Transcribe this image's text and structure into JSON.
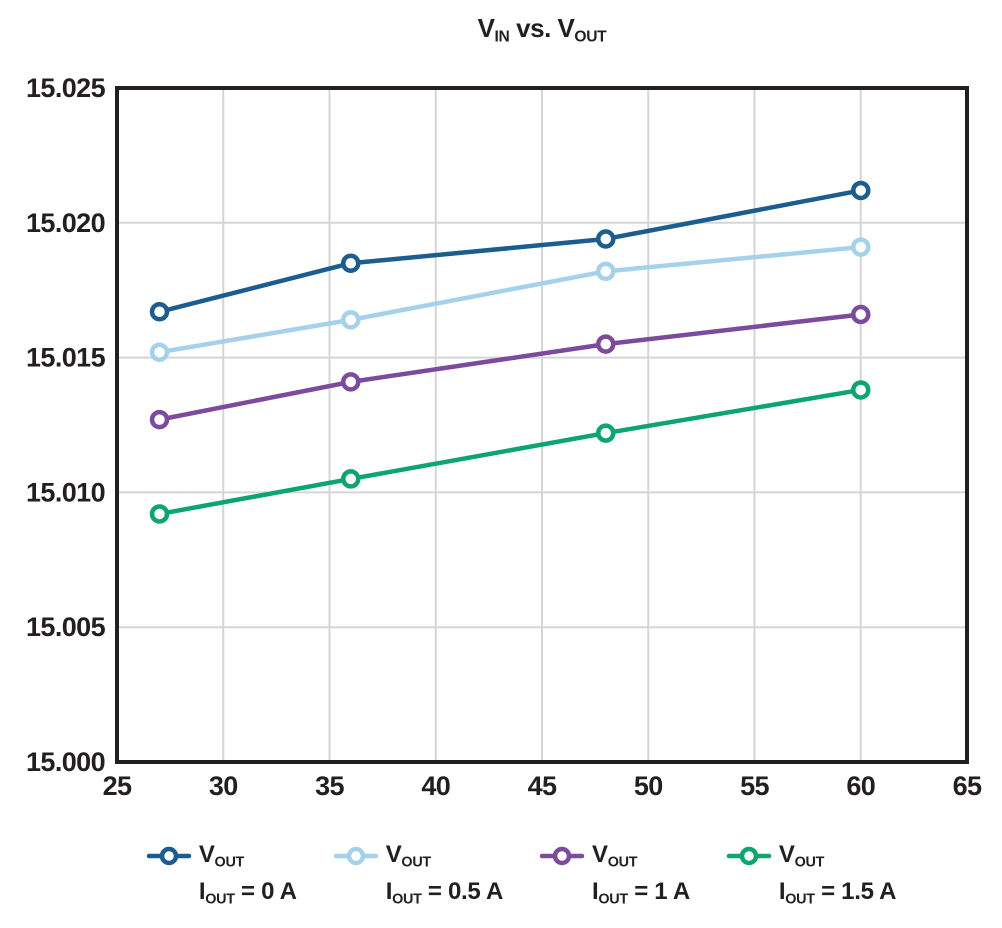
{
  "title": {
    "segments": [
      {
        "t": "V"
      },
      {
        "s": "IN"
      },
      {
        "t": " vs. V"
      },
      {
        "s": "OUT"
      }
    ]
  },
  "chart_data": {
    "type": "line",
    "title": "VIN vs. VOUT",
    "xlabel": "",
    "ylabel": "",
    "x": [
      27,
      36,
      48,
      60
    ],
    "xlim": [
      25,
      65
    ],
    "ylim": [
      15.0,
      15.025
    ],
    "x_ticks": [
      25,
      30,
      35,
      40,
      45,
      50,
      55,
      60,
      65
    ],
    "x_tick_labels": [
      "25",
      "30",
      "35",
      "40",
      "45",
      "50",
      "55",
      "60",
      "65"
    ],
    "y_ticks": [
      15.0,
      15.005,
      15.01,
      15.015,
      15.02,
      15.025
    ],
    "y_tick_labels": [
      "15.000",
      "15.005",
      "15.010",
      "15.015",
      "15.020",
      "15.025"
    ],
    "grid": true,
    "legend_position": "bottom",
    "marker": "open-circle",
    "series": [
      {
        "name": "VOUT, IOUT = 0 A",
        "color": "#1b5d8f",
        "values": [
          15.0167,
          15.0185,
          15.0194,
          15.0212
        ]
      },
      {
        "name": "VOUT, IOUT = 0.5 A",
        "color": "#a5d2ea",
        "values": [
          15.0152,
          15.0164,
          15.0182,
          15.0191
        ]
      },
      {
        "name": "VOUT, IOUT = 1 A",
        "color": "#7c4b9e",
        "values": [
          15.0127,
          15.0141,
          15.0155,
          15.0166
        ]
      },
      {
        "name": "VOUT, IOUT = 1.5 A",
        "color": "#0ca56f",
        "values": [
          15.0092,
          15.0105,
          15.0122,
          15.0138
        ]
      }
    ]
  },
  "legend": {
    "entries": [
      {
        "color": "#1b5d8f",
        "line1": [
          {
            "t": "V"
          },
          {
            "s": "OUT"
          }
        ],
        "line2": [
          {
            "t": "I"
          },
          {
            "s": "OUT"
          },
          {
            "t": " = 0 A"
          }
        ]
      },
      {
        "color": "#a5d2ea",
        "line1": [
          {
            "t": "V"
          },
          {
            "s": "OUT"
          }
        ],
        "line2": [
          {
            "t": "I"
          },
          {
            "s": "OUT"
          },
          {
            "t": " = 0.5 A"
          }
        ]
      },
      {
        "color": "#7c4b9e",
        "line1": [
          {
            "t": "V"
          },
          {
            "s": "OUT"
          }
        ],
        "line2": [
          {
            "t": "I"
          },
          {
            "s": "OUT"
          },
          {
            "t": " = 1 A"
          }
        ]
      },
      {
        "color": "#0ca56f",
        "line1": [
          {
            "t": "V"
          },
          {
            "s": "OUT"
          }
        ],
        "line2": [
          {
            "t": "I"
          },
          {
            "s": "OUT"
          },
          {
            "t": " = 1.5 A"
          }
        ]
      }
    ]
  },
  "colors": {
    "axis": "#231f20",
    "grid": "#d5d5d5",
    "text": "#231f20",
    "background": "#ffffff",
    "marker_fill": "#ffffff"
  }
}
